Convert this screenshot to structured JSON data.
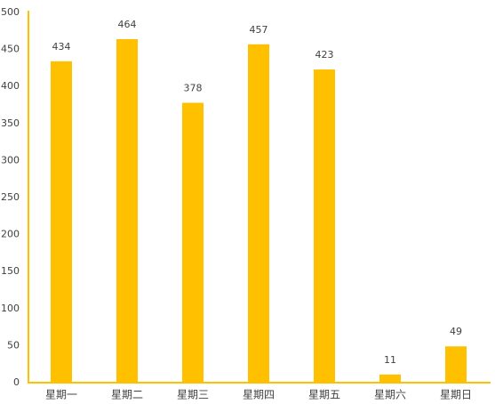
{
  "chart_data": {
    "type": "bar",
    "categories": [
      "星期一",
      "星期二",
      "星期三",
      "星期四",
      "星期五",
      "星期六",
      "星期日"
    ],
    "values": [
      434,
      464,
      378,
      457,
      423,
      11,
      49
    ],
    "color": "#ffc000",
    "ylim": [
      0,
      500
    ],
    "yticks": [
      0,
      50,
      100,
      150,
      200,
      250,
      300,
      350,
      400,
      450,
      500
    ],
    "grid": false
  }
}
